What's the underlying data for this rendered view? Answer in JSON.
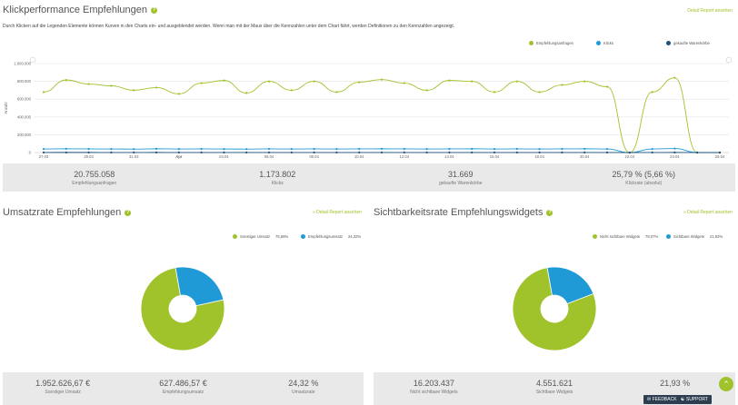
{
  "header": {
    "title": "Klickperformance Empfehlungen",
    "detail_link": "Detail Report ansehen",
    "description": "Durch Klicken auf die Legenden Elemente können Kurven in den Charts ein- und ausgeblendet werden. Wenn man mit der Maus über die Kennzahlen unter dem Chart fährt, werden Definitionen zu den Kennzahlen angezeigt."
  },
  "main_chart": {
    "legend": [
      {
        "label": "Empfehlungsanfragen",
        "color": "#a0c22a"
      },
      {
        "label": "Klicks",
        "color": "#1f9ad6"
      },
      {
        "label": "gekaufte Warenkörbe",
        "color": "#1b4f7c"
      }
    ],
    "ylabel": "Anzahl",
    "yticks": [
      "1.000.000",
      "800.000",
      "600.000",
      "400.000",
      "200.000",
      "0"
    ],
    "xticks": [
      "27.03",
      "29.03",
      "31.03",
      "Apr",
      "04.04",
      "06.04",
      "08.04",
      "10.04",
      "12.04",
      "14.04",
      "16.04",
      "18.04",
      "20.04",
      "22.04",
      "24.04",
      "26.04"
    ]
  },
  "chart_data": {
    "type": "line",
    "ylim": [
      0,
      1000000
    ],
    "ylabel": "Anzahl",
    "x": [
      "27.03",
      "28.03",
      "29.03",
      "30.03",
      "31.03",
      "01.04",
      "02.04",
      "03.04",
      "04.04",
      "05.04",
      "06.04",
      "07.04",
      "08.04",
      "09.04",
      "10.04",
      "11.04",
      "12.04",
      "13.04",
      "14.04",
      "15.04",
      "16.04",
      "17.04",
      "18.04",
      "19.04",
      "20.04",
      "21.04",
      "22.04",
      "23.04",
      "24.04",
      "25.04",
      "26.04"
    ],
    "series": [
      {
        "name": "Empfehlungsanfragen",
        "values": [
          680000,
          815000,
          770000,
          750000,
          700000,
          730000,
          660000,
          780000,
          810000,
          670000,
          800000,
          700000,
          800000,
          680000,
          790000,
          820000,
          780000,
          700000,
          810000,
          800000,
          680000,
          800000,
          680000,
          760000,
          800000,
          740000,
          0,
          680000,
          840000,
          0,
          0
        ]
      },
      {
        "name": "Klicks",
        "values": [
          40000,
          42000,
          41000,
          40000,
          39000,
          42000,
          40000,
          41000,
          40000,
          39000,
          41000,
          40000,
          41000,
          40000,
          41000,
          42000,
          41000,
          40000,
          41000,
          42000,
          40000,
          41000,
          40000,
          41000,
          42000,
          40000,
          0,
          40000,
          45000,
          0,
          0
        ]
      },
      {
        "name": "gekaufte Warenkörbe",
        "values": [
          1100,
          1200,
          1150,
          1100,
          1050,
          1150,
          1100,
          1120,
          1100,
          1080,
          1120,
          1100,
          1110,
          1090,
          1110,
          1130,
          1110,
          1090,
          1120,
          1130,
          1090,
          1110,
          1080,
          1100,
          1120,
          1090,
          0,
          1080,
          1150,
          0,
          0
        ]
      }
    ]
  },
  "main_stats": [
    {
      "value": "20.755.058",
      "label": "Empfehlungsanfragen"
    },
    {
      "value": "1.173.802",
      "label": "Klicks"
    },
    {
      "value": "31.669",
      "label": "gekaufte Warenkörbe"
    },
    {
      "value": "25,79 % (5,66 %)",
      "label": "Klickrate (absolut)"
    }
  ],
  "umsatz": {
    "title": "Umsatzrate Empfehlungen",
    "detail_link": "» Detail Report ansehen",
    "legend": [
      {
        "label": "Sonstiger Umsatz",
        "pct": "75,68%",
        "color": "#a0c22a"
      },
      {
        "label": "Empfehlungsumsatz",
        "pct": "24,32%",
        "color": "#1f9ad6"
      }
    ],
    "pie": [
      75.68,
      24.32
    ],
    "stats": [
      {
        "value": "1.952.626,67 €",
        "label": "Sonstiger Umsatz"
      },
      {
        "value": "627.486,57 €",
        "label": "Empfehlungsumsatz"
      },
      {
        "value": "24,32 %",
        "label": "Umsatzrate"
      }
    ]
  },
  "sicht": {
    "title": "Sichtbarkeitsrate Empfehlungswidgets",
    "detail_link": "» Detail Report ansehen",
    "legend": [
      {
        "label": "Nicht sichtbare Widgets",
        "pct": "78,07%",
        "color": "#a0c22a"
      },
      {
        "label": "Sichtbare Widgets",
        "pct": "21,93%",
        "color": "#1f9ad6"
      }
    ],
    "pie": [
      78.07,
      21.93
    ],
    "stats": [
      {
        "value": "16.203.437",
        "label": "Nicht sichtbare Widgets"
      },
      {
        "value": "4.551.621",
        "label": "Sichtbare Widgets"
      },
      {
        "value": "21,93 %",
        "label": ""
      }
    ]
  },
  "footer": {
    "feedback": "FEEDBACK",
    "support": "SUPPORT",
    "up_icon": "arrow-up-icon"
  }
}
